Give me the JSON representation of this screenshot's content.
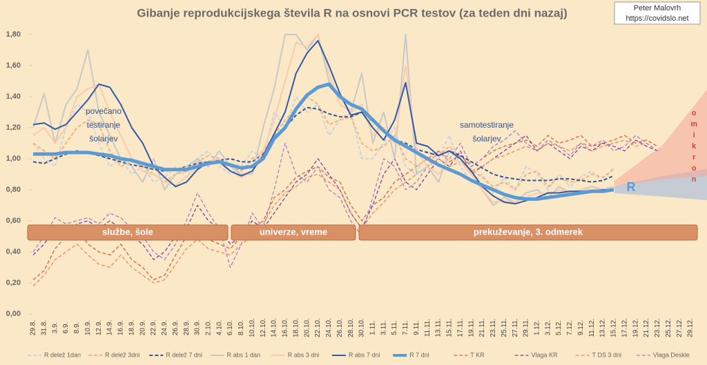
{
  "chart_data": {
    "type": "line",
    "title": "Gibanje reprodukcijskega števila R na osnovi PCR testov (za teden dni nazaj)",
    "credit": [
      "Peter Malovrh",
      "https://covidslo.net"
    ],
    "annotations": [
      [
        "povečano",
        "testiranje",
        "šolarjev"
      ],
      [
        "samotestiranje",
        "šolarjev"
      ]
    ],
    "series_label": "R",
    "omicron_label": "omikron",
    "periods": [
      "službe, šole",
      "univerze, vreme",
      "prekuževanje, 3. odmerek"
    ],
    "grid": false,
    "ylim": [
      0,
      1.8
    ],
    "yticks": [
      {
        "value": 0,
        "label": "0,00"
      },
      {
        "value": 0.2,
        "label": "0,20"
      },
      {
        "value": 0.4,
        "label": "0,40"
      },
      {
        "value": 0.6,
        "label": "0,60"
      },
      {
        "value": 0.8,
        "label": "0,80"
      },
      {
        "value": 1,
        "label": "1,00"
      },
      {
        "value": 1.2,
        "label": "1,20"
      },
      {
        "value": 1.4,
        "label": "1,40"
      },
      {
        "value": 1.6,
        "label": "1,60"
      },
      {
        "value": 1.8,
        "label": "1,80"
      }
    ],
    "categories": [
      "29.8.",
      "31.8.",
      "3.9.",
      "6.9.",
      "8.9.",
      "10.9.",
      "12.9.",
      "14.9.",
      "16.9.",
      "18.9.",
      "20.9.",
      "22.9.",
      "24.9.",
      "26.9.",
      "28.9.",
      "30.9.",
      "2.10.",
      "4.10.",
      "6.10.",
      "8.10.",
      "10.10.",
      "12.10.",
      "14.10.",
      "16.10.",
      "18.10.",
      "20.10.",
      "22.10.",
      "24.10.",
      "26.10.",
      "28.10.",
      "30.10.",
      "1.11.",
      "3.11.",
      "5.11.",
      "7.11.",
      "9.11.",
      "11.11.",
      "13.11.",
      "15.11.",
      "17.11.",
      "19.11.",
      "21.11.",
      "23.11.",
      "25.11.",
      "27.11.",
      "29.11.",
      "1.12.",
      "3.12.",
      "5.12.",
      "7.12.",
      "9.12.",
      "11.12.",
      "13.12.",
      "15.12.",
      "17.12.",
      "19.12.",
      "21.12.",
      "23.12.",
      "25.12.",
      "27.12.",
      "29.12."
    ],
    "series": [
      {
        "name": "R delež 1dan",
        "color": "#c9d3e3",
        "dashed": true,
        "line_width": 2,
        "values": [
          1.1,
          1.0,
          0.95,
          1.2,
          1.35,
          1.3,
          1.1,
          0.95,
          1.0,
          0.9,
          0.95,
          0.85,
          0.88,
          0.95,
          0.88,
          1.0,
          1.05,
          0.95,
          0.9,
          0.95,
          1.05,
          1.0,
          1.3,
          1.2,
          1.4,
          1.3,
          1.35,
          1.15,
          1.25,
          1.3,
          1.0,
          1.0,
          1.1,
          1.2,
          0.95,
          0.9,
          1.05,
          1.0,
          1.15,
          0.95,
          0.85,
          0.9,
          0.78,
          0.88,
          0.8,
          0.95,
          0.9,
          0.8,
          0.9,
          0.82,
          0.88,
          0.92,
          0.85,
          0.95,
          null,
          null,
          null,
          null,
          null,
          null,
          null
        ]
      },
      {
        "name": "R delež 3dni",
        "color": "#f4b183",
        "dashed": true,
        "line_width": 2,
        "values": [
          1.1,
          1.05,
          1.0,
          1.1,
          1.2,
          1.25,
          1.22,
          1.05,
          0.95,
          0.98,
          0.95,
          0.9,
          0.85,
          0.9,
          0.92,
          0.98,
          1.02,
          1.0,
          0.95,
          0.92,
          1.0,
          1.05,
          1.15,
          1.25,
          1.32,
          1.4,
          1.35,
          1.22,
          1.25,
          1.27,
          1.1,
          1.05,
          1.08,
          1.15,
          1.0,
          0.95,
          1.0,
          1.02,
          1.08,
          1.0,
          0.93,
          0.88,
          0.82,
          0.85,
          0.8,
          0.9,
          0.92,
          0.82,
          0.88,
          0.85,
          0.86,
          0.9,
          0.88,
          0.93,
          null,
          null,
          null,
          null,
          null,
          null,
          null
        ]
      },
      {
        "name": "R delež 7 dni",
        "color": "#2f5597",
        "dashed": true,
        "line_width": 2,
        "values": [
          0.98,
          0.97,
          1.0,
          1.03,
          1.05,
          1.04,
          1.02,
          1.0,
          0.98,
          0.96,
          0.95,
          0.93,
          0.92,
          0.93,
          0.95,
          0.97,
          0.98,
          0.99,
          1.0,
          0.98,
          0.98,
          1.03,
          1.12,
          1.2,
          1.28,
          1.33,
          1.32,
          1.29,
          1.27,
          1.27,
          1.3,
          1.24,
          1.18,
          1.12,
          1.1,
          1.06,
          1.04,
          1.02,
          1.05,
          1.02,
          0.98,
          0.94,
          0.9,
          0.88,
          0.87,
          0.86,
          0.86,
          0.86,
          0.87,
          0.87,
          0.86,
          0.85,
          0.86,
          0.89,
          null,
          null,
          null,
          null,
          null,
          null,
          null
        ]
      },
      {
        "name": "R abs 1 dan",
        "color": "#c8c8c8",
        "dashed": false,
        "line_width": 2,
        "values": [
          1.2,
          1.42,
          1.1,
          1.35,
          1.45,
          1.7,
          1.3,
          1.15,
          1.0,
          0.95,
          0.85,
          1.0,
          0.8,
          0.9,
          0.95,
          1.0,
          0.95,
          1.05,
          0.95,
          0.9,
          0.9,
          1.2,
          1.45,
          1.8,
          1.8,
          1.7,
          1.8,
          1.5,
          1.4,
          1.3,
          1.55,
          1.1,
          1.3,
          1.0,
          1.8,
          0.9,
          0.95,
          0.85,
          1.05,
          1.0,
          0.9,
          0.8,
          0.7,
          0.75,
          0.72,
          0.78,
          0.8,
          0.75,
          0.82,
          0.78,
          0.8,
          0.82,
          0.8,
          0.82,
          null,
          null,
          null,
          null,
          null,
          null,
          null
        ]
      },
      {
        "name": "R abs 3 dni",
        "color": "#f8cbad",
        "dashed": false,
        "line_width": 2,
        "values": [
          1.15,
          1.2,
          1.1,
          1.2,
          1.4,
          1.45,
          1.48,
          1.3,
          1.15,
          1.0,
          0.92,
          0.9,
          0.85,
          0.83,
          0.88,
          0.95,
          0.98,
          1.0,
          0.92,
          0.88,
          0.92,
          1.05,
          1.25,
          1.5,
          1.75,
          1.72,
          1.8,
          1.55,
          1.35,
          1.3,
          1.35,
          1.15,
          1.2,
          1.1,
          1.6,
          1.05,
          0.95,
          0.9,
          1.0,
          0.98,
          0.9,
          0.8,
          0.72,
          0.73,
          0.72,
          0.75,
          0.78,
          0.77,
          0.8,
          0.78,
          0.8,
          0.8,
          0.8,
          0.81,
          null,
          null,
          null,
          null,
          null,
          null,
          null
        ]
      },
      {
        "name": "R abs 7 dni",
        "color": "#2e5aa8",
        "dashed": false,
        "line_width": 2,
        "values": [
          1.22,
          1.23,
          1.19,
          1.22,
          1.3,
          1.38,
          1.48,
          1.46,
          1.35,
          1.2,
          1.1,
          0.95,
          0.88,
          0.82,
          0.85,
          0.93,
          0.98,
          0.98,
          0.92,
          0.89,
          0.92,
          1.02,
          1.16,
          1.3,
          1.55,
          1.68,
          1.76,
          1.6,
          1.42,
          1.28,
          1.3,
          1.2,
          1.12,
          1.25,
          1.49,
          1.1,
          1.08,
          1.02,
          1.05,
          1.0,
          0.92,
          0.82,
          0.76,
          0.72,
          0.71,
          0.73,
          0.75,
          0.78,
          0.78,
          0.79,
          0.79,
          0.79,
          0.8,
          0.8,
          null,
          null,
          null,
          null,
          null,
          null,
          null
        ]
      },
      {
        "name": "R 7 dni",
        "color": "#5b9bd5",
        "dashed": false,
        "line_width": 5,
        "values": [
          1.03,
          1.03,
          1.03,
          1.04,
          1.04,
          1.04,
          1.03,
          1.02,
          1.0,
          0.99,
          0.97,
          0.95,
          0.93,
          0.93,
          0.93,
          0.95,
          0.97,
          0.98,
          0.96,
          0.94,
          0.95,
          1.0,
          1.13,
          1.2,
          1.32,
          1.41,
          1.46,
          1.48,
          1.4,
          1.35,
          1.32,
          1.25,
          1.18,
          1.12,
          1.08,
          1.04,
          1.0,
          0.96,
          0.93,
          0.9,
          0.86,
          0.83,
          0.8,
          0.77,
          0.75,
          0.74,
          0.74,
          0.75,
          0.76,
          0.77,
          0.78,
          0.79,
          0.79,
          0.8,
          null,
          null,
          null,
          null,
          null,
          null,
          null
        ]
      },
      {
        "name": "T KR",
        "color": "#e0603e",
        "dashed": true,
        "line_width": 1.3,
        "values": [
          0.22,
          0.28,
          0.42,
          0.5,
          0.55,
          0.45,
          0.4,
          0.38,
          0.45,
          0.35,
          0.3,
          0.22,
          0.25,
          0.38,
          0.5,
          0.55,
          0.48,
          0.45,
          0.42,
          0.5,
          0.55,
          0.6,
          0.75,
          0.8,
          0.88,
          0.92,
          0.95,
          0.88,
          0.85,
          0.7,
          0.6,
          0.7,
          0.75,
          0.85,
          0.9,
          0.95,
          1.0,
          1.05,
          0.98,
          1.02,
          0.95,
          1.0,
          1.05,
          1.08,
          1.1,
          1.12,
          1.08,
          1.15,
          1.1,
          1.12,
          1.15,
          1.08,
          1.1,
          1.12,
          1.15,
          1.1,
          1.12,
          1.08,
          null,
          null,
          null
        ]
      },
      {
        "name": "Vlaga KR",
        "color": "#7a3fa8",
        "dashed": true,
        "line_width": 1.3,
        "values": [
          0.38,
          0.45,
          0.55,
          0.5,
          0.58,
          0.6,
          0.55,
          0.6,
          0.55,
          0.5,
          0.45,
          0.35,
          0.4,
          0.5,
          0.55,
          0.7,
          0.6,
          0.55,
          0.45,
          0.5,
          0.6,
          0.55,
          0.65,
          0.75,
          0.85,
          0.9,
          1.0,
          0.9,
          0.8,
          0.65,
          0.55,
          0.7,
          0.9,
          1.0,
          0.85,
          0.8,
          0.9,
          1.0,
          0.95,
          1.05,
          0.9,
          0.95,
          1.0,
          1.05,
          1.1,
          1.15,
          1.05,
          1.1,
          1.05,
          1.0,
          1.08,
          1.05,
          1.1,
          1.08,
          1.05,
          1.12,
          1.08,
          1.05,
          null,
          null,
          null
        ]
      },
      {
        "name": "T DS 3 dni",
        "color": "#f28a5e",
        "dashed": true,
        "line_width": 1.3,
        "values": [
          0.18,
          0.25,
          0.35,
          0.4,
          0.45,
          0.38,
          0.32,
          0.3,
          0.38,
          0.3,
          0.25,
          0.2,
          0.22,
          0.32,
          0.42,
          0.48,
          0.42,
          0.4,
          0.38,
          0.45,
          0.5,
          0.58,
          0.7,
          0.78,
          0.82,
          0.88,
          0.9,
          0.85,
          0.8,
          0.65,
          0.55,
          0.65,
          0.72,
          0.8,
          0.85,
          0.9,
          0.95,
          1.0,
          0.95,
          0.98,
          0.92,
          0.95,
          1.0,
          1.02,
          1.05,
          1.08,
          1.05,
          1.1,
          1.08,
          1.05,
          1.1,
          1.05,
          1.08,
          1.1,
          1.12,
          1.08,
          1.1,
          1.05,
          null,
          null,
          null
        ]
      },
      {
        "name": "Vlaga Deskle",
        "color": "#a77cc7",
        "dashed": true,
        "line_width": 1.3,
        "values": [
          0.4,
          0.5,
          0.62,
          0.58,
          0.6,
          0.62,
          0.58,
          0.65,
          0.62,
          0.55,
          0.5,
          0.4,
          0.35,
          0.45,
          0.6,
          0.78,
          0.65,
          0.55,
          0.3,
          0.45,
          0.65,
          0.55,
          0.8,
          1.1,
          0.9,
          0.85,
          0.95,
          0.8,
          0.75,
          0.6,
          0.5,
          0.75,
          1.0,
          0.95,
          0.8,
          0.85,
          0.95,
          1.05,
          1.0,
          1.1,
          0.95,
          1.0,
          1.08,
          1.12,
          1.18,
          1.1,
          1.05,
          1.12,
          1.08,
          1.02,
          1.1,
          1.08,
          1.12,
          1.05,
          1.08,
          1.15,
          1.1,
          1.05,
          null,
          null,
          null
        ]
      }
    ]
  }
}
